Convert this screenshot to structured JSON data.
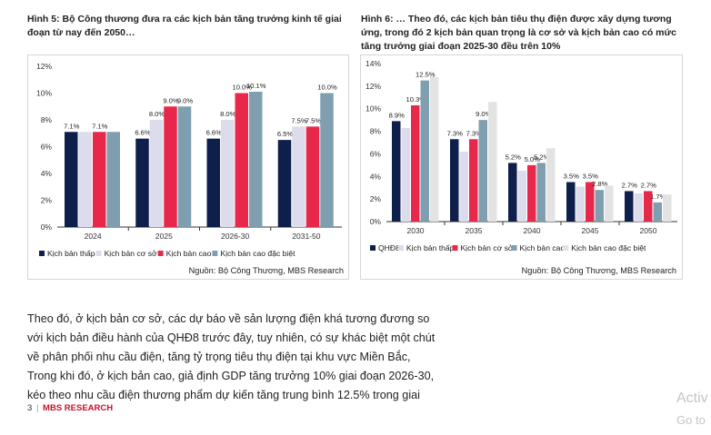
{
  "chart_data": [
    {
      "type": "bar",
      "title": "Hình 5: Bộ Công thương đưa ra các kịch bản tăng trưởng kinh tế giai đoạn từ nay đến 2050…",
      "title_lines": [
        "Hình 5: Bộ Công thương đưa ra các kịch bản tăng trưởng kinh tế giai",
        "đoạn từ nay đến 2050…"
      ],
      "categories": [
        "2024",
        "2025",
        "2026-30",
        "2031-50"
      ],
      "ylim": [
        0,
        12
      ],
      "yticks": [
        "0%",
        "2%",
        "4%",
        "6%",
        "8%",
        "10%",
        "12%"
      ],
      "grid": false,
      "legend_position": "bottom",
      "series": [
        {
          "name": "Kịch bản thấp",
          "color": "#0d1f4a",
          "values": [
            7.1,
            6.6,
            6.6,
            6.5
          ],
          "labels": [
            "7.1%",
            "6.6%",
            "6.6%",
            "6.5%"
          ]
        },
        {
          "name": "Kịch bản cơ sở",
          "color": "#dcdcec",
          "values": [
            7.1,
            8.0,
            8.0,
            7.5
          ],
          "labels": [
            "",
            "8.0%",
            "8.0%",
            "7.5%"
          ]
        },
        {
          "name": "Kịch bản cao",
          "color": "#e8284a",
          "values": [
            7.1,
            9.0,
            10.0,
            7.5
          ],
          "labels": [
            "7.1%",
            "9.0%",
            "10.0%",
            "7.5%"
          ]
        },
        {
          "name": "Kịch bản cao đặc biệt",
          "color": "#7f9fb0",
          "values": [
            7.1,
            9.0,
            10.1,
            10.0
          ],
          "labels": [
            "",
            "9.0%",
            "10.1%",
            "10.0%"
          ]
        }
      ],
      "source": "Nguồn: Bộ Công Thương, MBS Research"
    },
    {
      "type": "bar",
      "title": "Hình 6: … Theo đó, các kịch bản tiêu thụ điện được xây dựng tương ứng, trong đó 2 kịch bản quan trọng là cơ sở và kịch bản cao có mức tăng trưởng giai đoạn 2025-30 đều trên 10%",
      "title_lines": [
        "Hình 6: … Theo đó, các kịch bản tiêu thụ điện được xây dựng tương",
        "ứng, trong đó 2 kịch bản quan trọng là cơ sở và kịch bản cao có mức",
        "tăng trưởng giai đoạn 2025-30 đều trên 10%"
      ],
      "categories": [
        "2030",
        "2035",
        "2040",
        "2045",
        "2050"
      ],
      "ylim": [
        0,
        14
      ],
      "yticks": [
        "0%",
        "2%",
        "4%",
        "6%",
        "8%",
        "10%",
        "12%",
        "14%"
      ],
      "grid": false,
      "legend_position": "bottom",
      "series": [
        {
          "name": "QHĐ8",
          "color": "#0d1f4a",
          "values": [
            8.9,
            7.3,
            5.2,
            3.5,
            2.7
          ],
          "labels": [
            "8.9%",
            "7.3%",
            "5.2%",
            "3.5%",
            "2.7%"
          ]
        },
        {
          "name": "Kịch bản thấp",
          "color": "#dcdcec",
          "values": [
            8.3,
            6.2,
            4.5,
            3.1,
            2.5
          ],
          "labels": [
            "",
            "",
            "",
            "",
            ""
          ]
        },
        {
          "name": "Kịch bản cơ sở",
          "color": "#e8284a",
          "values": [
            10.3,
            7.3,
            5.0,
            3.5,
            2.7
          ],
          "labels": [
            "10.3%",
            "7.3%",
            "5.0%",
            "3.5%",
            "2.7%"
          ]
        },
        {
          "name": "Kịch bản cao",
          "color": "#7f9fb0",
          "values": [
            12.5,
            9.0,
            5.2,
            2.8,
            1.7
          ],
          "labels": [
            "12.5%",
            "9.0%",
            "5.2%",
            "2.8%",
            "1.7%"
          ]
        },
        {
          "name": "Kịch bản cao đặc biệt",
          "color": "#e3e3e3",
          "values": [
            12.8,
            10.6,
            6.5,
            3.2,
            2.4
          ],
          "labels": [
            "",
            "",
            "",
            "",
            ""
          ]
        }
      ],
      "source": "Nguồn: Bộ Công Thương, MBS Research"
    }
  ],
  "body_lines": [
    "Theo đó, ở kịch bản cơ sở, các dự báo về sản lượng điện khá tương đương so",
    "với kịch bản điều hành của QHĐ8 trước đây, tuy nhiên, có sự khác biệt một chút",
    "về phân phối nhu cầu điện, tăng tỷ trọng tiêu thụ điện tại khu vực Miền Bắc,",
    "Trong khi đó, ở kịch bản cao, giả định GDP tăng trưởng 10% giai đoạn 2026-30,",
    "kéo theo nhu cầu điện thương phẩm dự kiến tăng trung bình 12.5% trong giai"
  ],
  "footer": {
    "page": "3",
    "separator": "|",
    "brand": "MBS RESEARCH"
  },
  "watermark": {
    "line1": "Activ",
    "line2": "Go to"
  }
}
